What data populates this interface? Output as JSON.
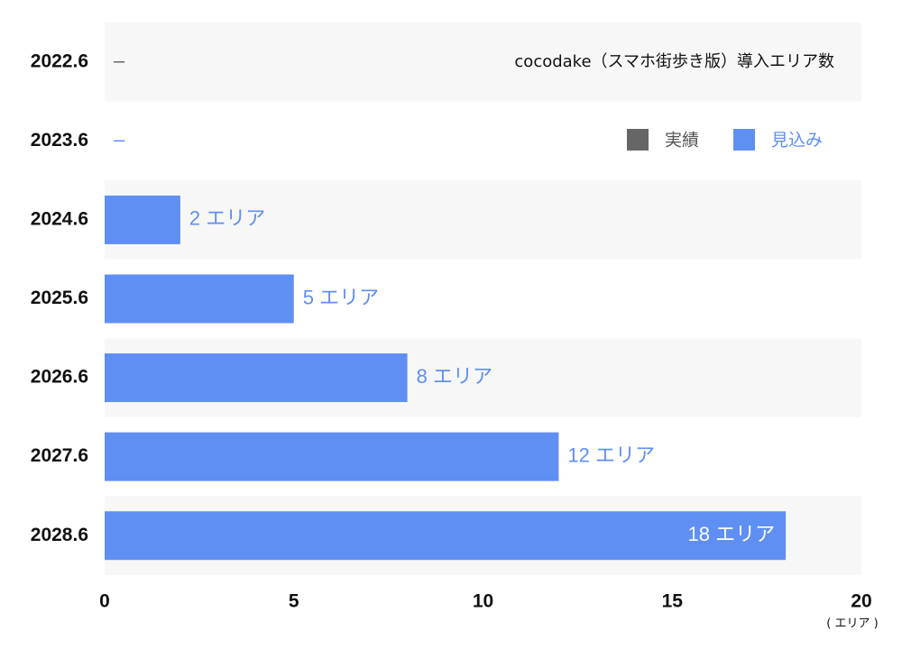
{
  "chart_data": {
    "type": "bar",
    "orientation": "horizontal",
    "title": "cocodake（スマホ街歩き版）導入エリア数",
    "categories": [
      "2022.6",
      "2023.6",
      "2024.6",
      "2025.6",
      "2026.6",
      "2027.6",
      "2028.6"
    ],
    "series": [
      {
        "name": "実績",
        "color": "#666666",
        "values": [
          null,
          null,
          null,
          null,
          null,
          null,
          null
        ],
        "value_labels": [
          "–",
          null,
          null,
          null,
          null,
          null,
          null
        ]
      },
      {
        "name": "見込み",
        "color": "#5f8ff2",
        "values": [
          null,
          null,
          2,
          5,
          8,
          12,
          18
        ],
        "value_labels": [
          null,
          "–",
          "2 エリア",
          "5 エリア",
          "8 エリア",
          "12 エリア",
          "18 エリア"
        ]
      }
    ],
    "xlim": [
      0,
      20
    ],
    "xticks": [
      0,
      5,
      10,
      15,
      20
    ],
    "x_label": "( エリア )"
  }
}
